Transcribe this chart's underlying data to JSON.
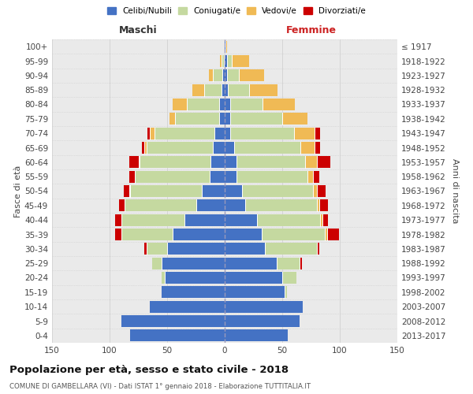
{
  "age_groups": [
    "0-4",
    "5-9",
    "10-14",
    "15-19",
    "20-24",
    "25-29",
    "30-34",
    "35-39",
    "40-44",
    "45-49",
    "50-54",
    "55-59",
    "60-64",
    "65-69",
    "70-74",
    "75-79",
    "80-84",
    "85-89",
    "90-94",
    "95-99",
    "100+"
  ],
  "birth_years": [
    "2013-2017",
    "2008-2012",
    "2003-2007",
    "1998-2002",
    "1993-1997",
    "1988-1992",
    "1983-1987",
    "1978-1982",
    "1973-1977",
    "1968-1972",
    "1963-1967",
    "1958-1962",
    "1953-1957",
    "1948-1952",
    "1943-1947",
    "1938-1942",
    "1933-1937",
    "1928-1932",
    "1923-1927",
    "1918-1922",
    "≤ 1917"
  ],
  "male_celibe": [
    82,
    90,
    65,
    55,
    52,
    55,
    50,
    45,
    35,
    25,
    20,
    13,
    12,
    10,
    9,
    5,
    5,
    3,
    2,
    1,
    0
  ],
  "male_coniugato": [
    0,
    0,
    0,
    0,
    3,
    8,
    18,
    45,
    55,
    62,
    62,
    65,
    62,
    58,
    52,
    38,
    28,
    15,
    8,
    2,
    0
  ],
  "male_vedovo": [
    0,
    0,
    0,
    0,
    0,
    0,
    0,
    0,
    0,
    0,
    1,
    0,
    1,
    2,
    4,
    5,
    12,
    10,
    4,
    1,
    0
  ],
  "male_divorziato": [
    0,
    0,
    0,
    0,
    0,
    0,
    2,
    5,
    5,
    5,
    5,
    5,
    8,
    2,
    2,
    0,
    0,
    0,
    0,
    0,
    0
  ],
  "female_nubile": [
    55,
    65,
    68,
    52,
    50,
    45,
    35,
    32,
    28,
    18,
    15,
    10,
    10,
    8,
    5,
    5,
    5,
    3,
    2,
    2,
    1
  ],
  "female_coniugata": [
    0,
    0,
    0,
    2,
    12,
    20,
    45,
    55,
    55,
    62,
    62,
    62,
    60,
    58,
    55,
    45,
    28,
    18,
    10,
    4,
    0
  ],
  "female_vedova": [
    0,
    0,
    0,
    0,
    0,
    0,
    0,
    2,
    2,
    2,
    3,
    5,
    10,
    12,
    18,
    22,
    28,
    25,
    22,
    15,
    1
  ],
  "female_divorziata": [
    0,
    0,
    0,
    0,
    0,
    2,
    2,
    10,
    5,
    8,
    8,
    5,
    12,
    5,
    5,
    0,
    0,
    0,
    0,
    0,
    0
  ],
  "color_celibe": "#4472C4",
  "color_coniugato": "#C5D9A0",
  "color_vedovo": "#F0BA55",
  "color_divorziato": "#CC0000",
  "xlim": 150,
  "title": "Popolazione per età, sesso e stato civile - 2018",
  "subtitle": "COMUNE DI GAMBELLARA (VI) - Dati ISTAT 1° gennaio 2018 - Elaborazione TUTTITALIA.IT",
  "label_maschi": "Maschi",
  "label_femmine": "Femmine",
  "ylabel_left": "Fasce di età",
  "ylabel_right": "Anni di nascita",
  "legend_labels": [
    "Celibi/Nubili",
    "Coniugati/e",
    "Vedovi/e",
    "Divorziati/e"
  ],
  "bg_color": "#eaeaea"
}
